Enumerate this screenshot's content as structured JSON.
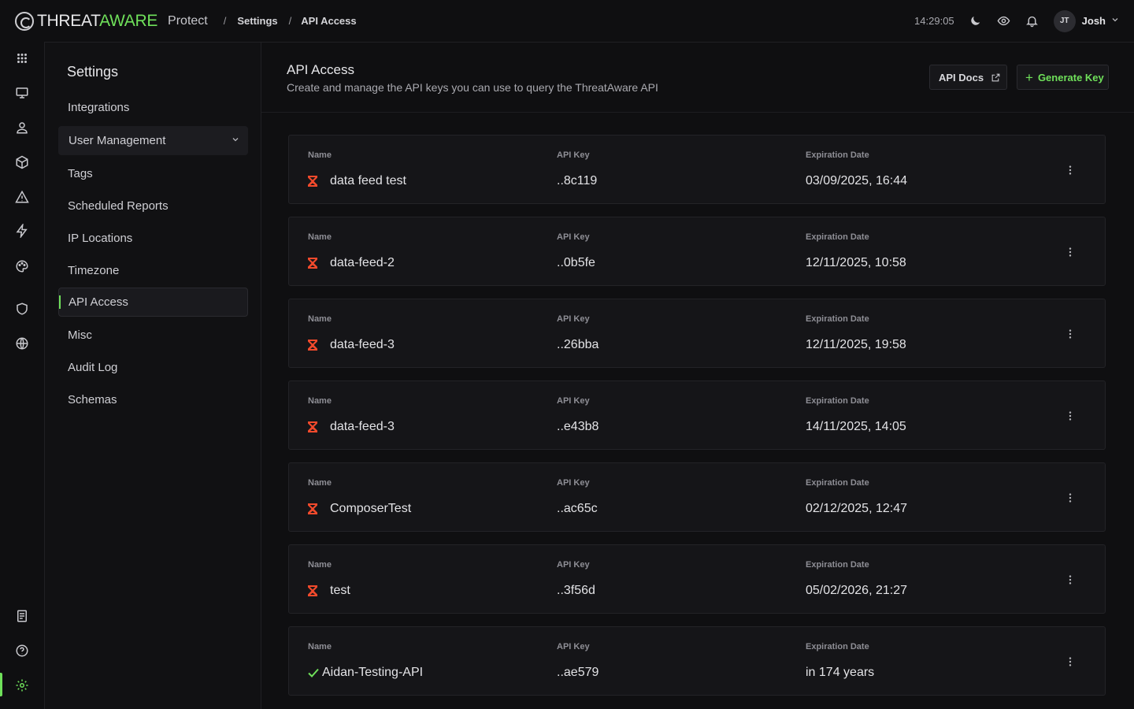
{
  "topbar": {
    "logo_threat": "THREAT",
    "logo_aware": "AWARE",
    "product": "Protect",
    "breadcrumb": [
      "Settings",
      "API Access"
    ],
    "separator": "/",
    "clock": "14:29:05",
    "user_initials": "JT",
    "user_name": "Josh",
    "icons": [
      "moon-icon",
      "eye-icon",
      "bell-icon",
      "chevron-down-icon"
    ]
  },
  "rail": {
    "items": [
      "apps-grid-icon",
      "monitor-icon",
      "user-icon",
      "cube-icon",
      "warning-icon",
      "lightning-icon",
      "palette-icon",
      "shield-icon",
      "globe-icon",
      "docs-icon",
      "help-icon",
      "settings-gear-icon"
    ],
    "accent": "#6fe05a"
  },
  "settings": {
    "title": "Settings",
    "items": [
      {
        "label": "Integrations"
      },
      {
        "label": "User Management"
      },
      {
        "label": "Tags"
      },
      {
        "label": "Scheduled Reports"
      },
      {
        "label": "IP Locations"
      },
      {
        "label": "Timezone"
      },
      {
        "label": "API Access"
      },
      {
        "label": "Misc"
      },
      {
        "label": "Audit Log"
      },
      {
        "label": "Schemas"
      }
    ],
    "active": "API Access",
    "expanded": "User Management"
  },
  "main": {
    "title": "API Access",
    "subtitle": "Create and manage the API keys you can use to query the ThreatAware API",
    "api_docs_label": "API Docs",
    "generate_key_label": "Generate Key",
    "columns": {
      "name": "Name",
      "api_key": "API Key",
      "expiration": "Expiration Date"
    },
    "keys": [
      {
        "name": "data feed test",
        "api_key": "..8c119",
        "expiration": "03/09/2025, 16:44",
        "status": "expired"
      },
      {
        "name": "data-feed-2",
        "api_key": "..0b5fe",
        "expiration": "12/11/2025, 10:58",
        "status": "expired"
      },
      {
        "name": "data-feed-3",
        "api_key": "..26bba",
        "expiration": "12/11/2025, 19:58",
        "status": "expired"
      },
      {
        "name": "data-feed-3",
        "api_key": "..e43b8",
        "expiration": "14/11/2025, 14:05",
        "status": "expired"
      },
      {
        "name": "ComposerTest",
        "api_key": "..ac65c",
        "expiration": "02/12/2025, 12:47",
        "status": "expired"
      },
      {
        "name": "test",
        "api_key": "..3f56d",
        "expiration": "05/02/2026, 21:27",
        "status": "expired"
      },
      {
        "name": "Aidan-Testing-API",
        "api_key": "..ae579",
        "expiration": "in 174 years",
        "status": "active"
      }
    ],
    "colors": {
      "expired": "#f24a2c",
      "active": "#6fe05a"
    }
  }
}
